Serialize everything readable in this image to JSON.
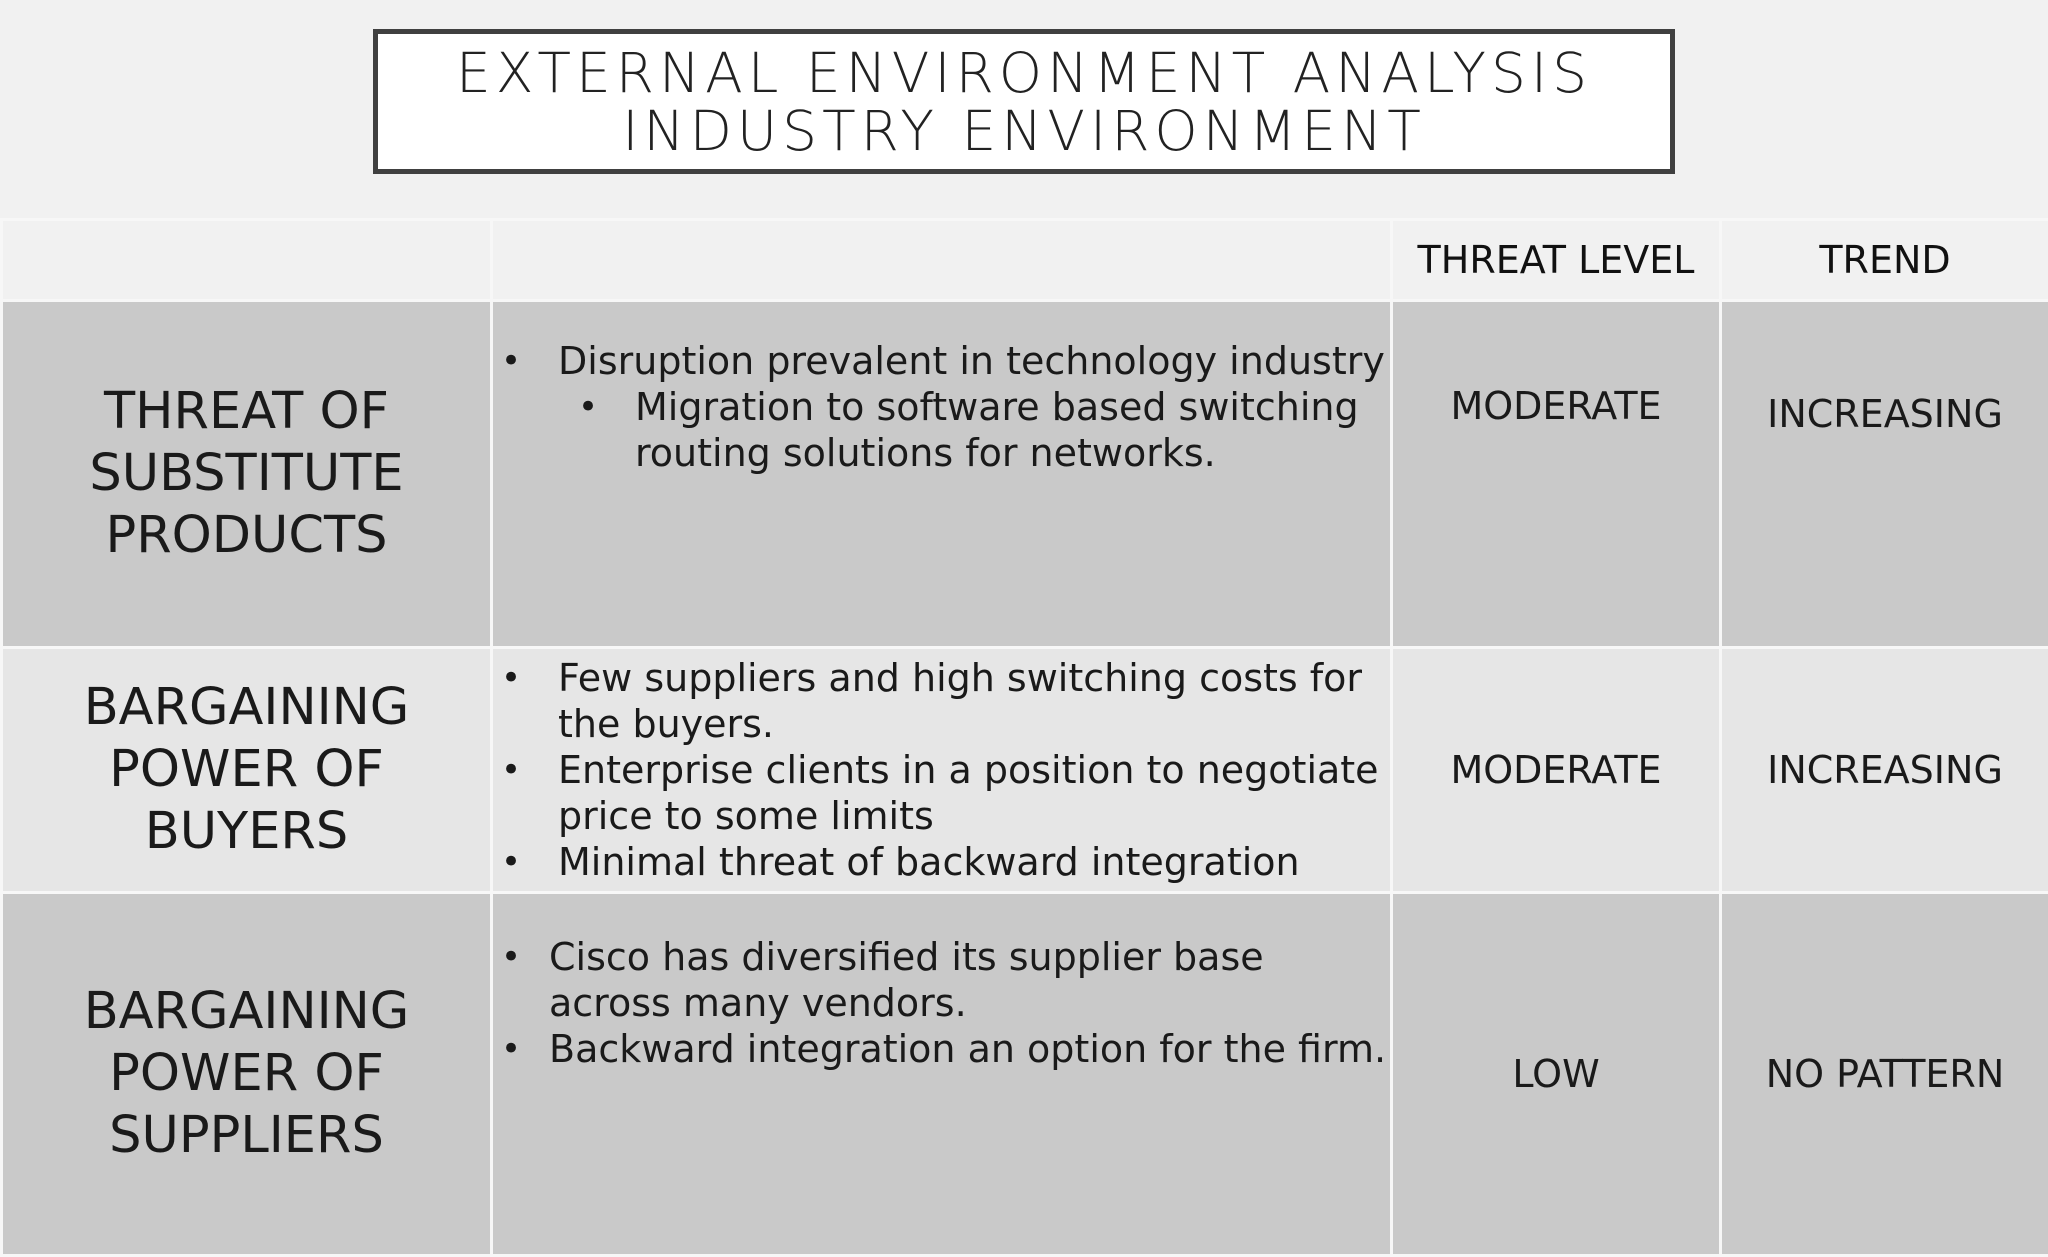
{
  "title": {
    "line1": "EXTERNAL ENVIRONMENT ANALYSIS",
    "line2": "INDUSTRY ENVIRONMENT"
  },
  "table": {
    "headers": {
      "col1": "",
      "col2": "",
      "threat_level": "THREAT LEVEL",
      "trend": "TREND"
    },
    "rows": [
      {
        "force_lines": [
          "THREAT OF",
          "SUBSTITUTE",
          "PRODUCTS"
        ],
        "bullets": [
          "Disruption prevalent in technology industry",
          "Migration to software based switching routing solutions for networks."
        ],
        "threat_level": "MODERATE",
        "trend": "INCREASING"
      },
      {
        "force_lines": [
          "BARGAINING",
          "POWER OF BUYERS"
        ],
        "bullets": [
          "Few suppliers and high switching costs for the buyers.",
          "Enterprise clients in a position to negotiate price to some limits",
          "Minimal threat of backward integration"
        ],
        "threat_level": "MODERATE",
        "trend": "INCREASING"
      },
      {
        "force_lines": [
          "BARGAINING",
          "POWER OF",
          "SUPPLIERS"
        ],
        "bullets": [
          "Cisco has diversified its supplier base across many vendors.",
          "Backward integration an option for the firm."
        ],
        "threat_level": "LOW",
        "trend": "NO PATTERN"
      }
    ]
  }
}
